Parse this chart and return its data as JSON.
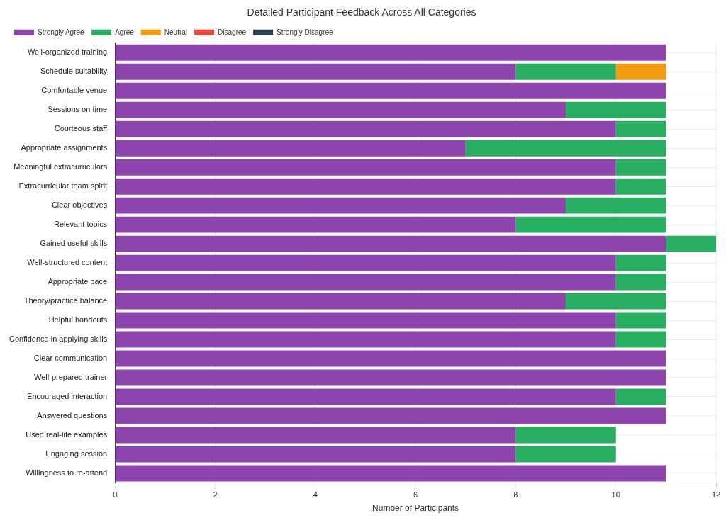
{
  "chart_data": {
    "type": "bar",
    "orientation": "horizontal",
    "stacked": true,
    "title": "Detailed Participant Feedback Across All Categories",
    "xlabel": "Number of Participants",
    "categories": [
      "Well-organized training",
      "Schedule suitability",
      "Comfortable venue",
      "Sessions on time",
      "Courteous staff",
      "Appropriate assignments",
      "Meaningful extracurriculars",
      "Extracurricular team spirit",
      "Clear objectives",
      "Relevant topics",
      "Gained useful skills",
      "Well-structured content",
      "Appropriate pace",
      "Theory/practice balance",
      "Helpful handouts",
      "Confidence in applying skills",
      "Clear communication",
      "Well-prepared trainer",
      "Encouraged interaction",
      "Answered questions",
      "Used real-life examples",
      "Engaging session",
      "Willingness to re-attend"
    ],
    "series": [
      {
        "name": "Strongly Agree",
        "color": "#8e44ad",
        "values": [
          11,
          8,
          11,
          9,
          10,
          7,
          10,
          10,
          9,
          8,
          11,
          10,
          10,
          9,
          10,
          10,
          11,
          11,
          10,
          11,
          8,
          8,
          11
        ]
      },
      {
        "name": "Agree",
        "color": "#27ae60",
        "values": [
          0,
          2,
          0,
          2,
          1,
          4,
          1,
          1,
          2,
          3,
          1,
          1,
          1,
          2,
          1,
          1,
          0,
          0,
          1,
          0,
          2,
          2,
          0
        ]
      },
      {
        "name": "Neutral",
        "color": "#f39c12",
        "values": [
          0,
          1,
          0,
          0,
          0,
          0,
          0,
          0,
          0,
          0,
          0,
          0,
          0,
          0,
          0,
          0,
          0,
          0,
          0,
          0,
          0,
          0,
          0
        ]
      },
      {
        "name": "Disagree",
        "color": "#e74c3c",
        "values": [
          0,
          0,
          0,
          0,
          0,
          0,
          0,
          0,
          0,
          0,
          0,
          0,
          0,
          0,
          0,
          0,
          0,
          0,
          0,
          0,
          0,
          0,
          0
        ]
      },
      {
        "name": "Strongly Disagree",
        "color": "#2c3e50",
        "values": [
          0,
          0,
          0,
          0,
          0,
          0,
          0,
          0,
          0,
          0,
          0,
          0,
          0,
          0,
          0,
          0,
          0,
          0,
          0,
          0,
          0,
          0,
          0
        ]
      }
    ],
    "xlim": [
      0,
      12
    ],
    "xticks": [
      0,
      2,
      4,
      6,
      8,
      10,
      12
    ],
    "grid": true,
    "legend": "top left"
  }
}
